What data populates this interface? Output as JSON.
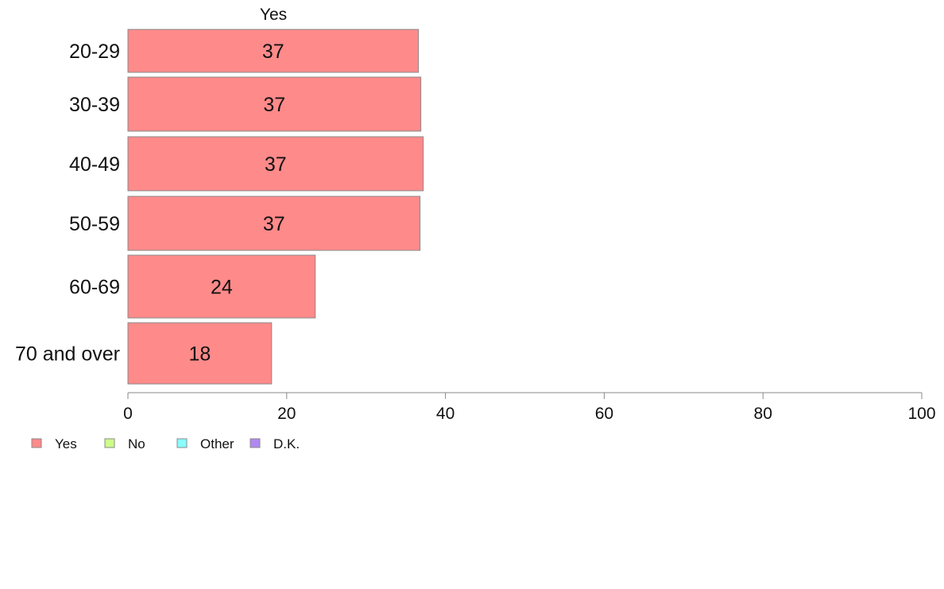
{
  "chart_data": {
    "type": "bar",
    "orientation": "horizontal",
    "categories": [
      "20-29",
      "30-39",
      "40-49",
      "50-59",
      "60-69",
      "70 and over"
    ],
    "series": [
      {
        "name": "Yes",
        "values": [
          36.6,
          36.9,
          37.2,
          36.8,
          23.6,
          18.1
        ],
        "labels": [
          "37",
          "37",
          "37",
          "37",
          "24",
          "18"
        ],
        "color": "#ff8a8a"
      }
    ],
    "column_header": "Yes",
    "xlim": [
      0,
      100
    ],
    "xticks": [
      "0",
      "20",
      "40",
      "60",
      "80",
      "100"
    ],
    "grid": false,
    "legend": {
      "placement": "bottom-left",
      "items": [
        {
          "label": "Yes",
          "color": "#ff8a8a"
        },
        {
          "label": "No",
          "color": "#ccff88"
        },
        {
          "label": "Other",
          "color": "#88ffff"
        },
        {
          "label": "D.K.",
          "color": "#b088f0"
        }
      ]
    }
  }
}
